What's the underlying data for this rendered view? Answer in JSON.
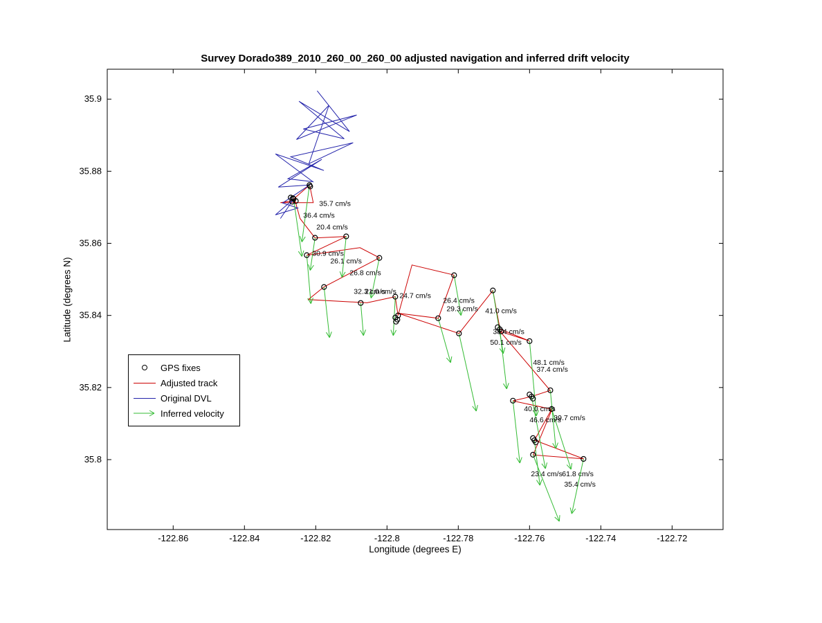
{
  "figure": {
    "title": "Survey Dorado389_2010_260_00_260_00 adjusted navigation and inferred drift velocity",
    "xlabel": "Longitude (degrees E)",
    "ylabel": "Latitude (degrees N)"
  },
  "legend": {
    "items": [
      {
        "label": "GPS fixes",
        "marker": "circle",
        "color": "#000000"
      },
      {
        "label": "Adjusted track",
        "marker": "line",
        "color": "#cc0000"
      },
      {
        "label": "Original DVL",
        "marker": "line",
        "color": "#2222aa"
      },
      {
        "label": "Inferred velocity",
        "marker": "arrow",
        "color": "#33bb33"
      }
    ]
  },
  "chart_data": {
    "type": "line",
    "title": "Survey Dorado389_2010_260_00_260_00 adjusted navigation and inferred drift velocity",
    "xlabel": "Longitude (degrees E)",
    "ylabel": "Latitude (degrees N)",
    "xlim": [
      -122.8785,
      -122.7057
    ],
    "ylim": [
      35.7806,
      35.9083
    ],
    "grid": false,
    "legend_position": "left-center-box",
    "x_ticks": {
      "values": [
        -122.86,
        -122.84,
        -122.82,
        -122.8,
        -122.78,
        -122.76,
        -122.74,
        -122.72
      ],
      "labels": [
        "-122.86",
        "-122.84",
        "-122.82",
        "-122.8",
        "-122.78",
        "-122.76",
        "-122.74",
        "-122.72"
      ]
    },
    "y_ticks": {
      "values": [
        35.8,
        35.82,
        35.84,
        35.86,
        35.88,
        35.9
      ],
      "labels": [
        "35.8",
        "35.82",
        "35.84",
        "35.86",
        "35.88",
        "35.9"
      ]
    },
    "series": [
      {
        "name": "Original DVL",
        "color": "#2222aa",
        "points": [
          [
            -122.8196,
            35.9023
          ],
          [
            -122.8105,
            35.891
          ],
          [
            -122.8247,
            35.8994
          ],
          [
            -122.812,
            35.889
          ],
          [
            -122.8235,
            35.8917
          ],
          [
            -122.8085,
            35.8956
          ],
          [
            -122.8254,
            35.8888
          ],
          [
            -122.8163,
            35.8983
          ],
          [
            -122.8219,
            35.8821
          ],
          [
            -122.8095,
            35.8879
          ],
          [
            -122.827,
            35.884
          ],
          [
            -122.8177,
            35.8802
          ],
          [
            -122.8313,
            35.8848
          ],
          [
            -122.8208,
            35.8771
          ],
          [
            -122.8278,
            35.8779
          ],
          [
            -122.8183,
            35.8833
          ],
          [
            -122.8305,
            35.8756
          ],
          [
            -122.8217,
            35.8762
          ],
          [
            -122.8293,
            35.8712
          ],
          [
            -122.825,
            35.8698
          ],
          [
            -122.8313,
            35.8679
          ],
          [
            -122.8262,
            35.8723
          ],
          [
            -122.8299,
            35.8669
          ]
        ]
      },
      {
        "name": "Adjusted track",
        "color": "#cc0000",
        "points": [
          [
            -122.8262,
            35.8723
          ],
          [
            -122.8217,
            35.8762
          ],
          [
            -122.8207,
            35.8713
          ],
          [
            -122.8299,
            35.8713
          ],
          [
            -122.8258,
            35.8719
          ],
          [
            -122.8244,
            35.8669
          ],
          [
            -122.8202,
            35.8615
          ],
          [
            -122.8114,
            35.8619
          ],
          [
            -122.8225,
            35.8567
          ],
          [
            -122.8076,
            35.8588
          ],
          [
            -122.8021,
            35.856
          ],
          [
            -122.8177,
            35.8479
          ],
          [
            -122.8221,
            35.8444
          ],
          [
            -122.8056,
            35.8435
          ],
          [
            -122.7977,
            35.8452
          ],
          [
            -122.7969,
            35.84
          ],
          [
            -122.793,
            35.854
          ],
          [
            -122.7812,
            35.8512
          ],
          [
            -122.7856,
            35.8392
          ],
          [
            -122.7969,
            35.8406
          ],
          [
            -122.7798,
            35.835
          ],
          [
            -122.7703,
            35.8469
          ],
          [
            -122.7683,
            35.8362
          ],
          [
            -122.76,
            35.8329
          ],
          [
            -122.7683,
            35.8356
          ],
          [
            -122.7542,
            35.8192
          ],
          [
            -122.7594,
            35.8175
          ],
          [
            -122.7647,
            35.8163
          ],
          [
            -122.7538,
            35.814
          ],
          [
            -122.7586,
            35.8054
          ],
          [
            -122.7448,
            35.8002
          ],
          [
            -122.759,
            35.8013
          ],
          [
            -122.7538,
            35.8137
          ]
        ]
      }
    ],
    "gps_fixes": {
      "name": "GPS fixes",
      "color": "#000000",
      "points": [
        [
          -122.82175,
          35.87615
        ],
        [
          -122.82155,
          35.87577
        ],
        [
          -122.82621,
          35.87231
        ],
        [
          -122.827,
          35.87269
        ],
        [
          -122.8256,
          35.87173
        ],
        [
          -122.8266,
          35.87154
        ],
        [
          -122.8264,
          35.8725
        ],
        [
          -122.82019,
          35.86154
        ],
        [
          -122.81146,
          35.86192
        ],
        [
          -122.82252,
          35.85673
        ],
        [
          -122.80214,
          35.85596
        ],
        [
          -122.81767,
          35.84788
        ],
        [
          -122.80738,
          35.84346
        ],
        [
          -122.79767,
          35.84519
        ],
        [
          -122.7969,
          35.84
        ],
        [
          -122.79767,
          35.83942
        ],
        [
          -122.79709,
          35.83885
        ],
        [
          -122.79748,
          35.83827
        ],
        [
          -122.78563,
          35.83923
        ],
        [
          -122.78117,
          35.85115
        ],
        [
          -122.77029,
          35.84692
        ],
        [
          -122.77981,
          35.835
        ],
        [
          -122.76835,
          35.83615
        ],
        [
          -122.76893,
          35.83673
        ],
        [
          -122.76796,
          35.83558
        ],
        [
          -122.76,
          35.83288
        ],
        [
          -122.75417,
          35.81923
        ],
        [
          -122.75942,
          35.8175
        ],
        [
          -122.76,
          35.81808
        ],
        [
          -122.75903,
          35.81692
        ],
        [
          -122.76466,
          35.81635
        ],
        [
          -122.75379,
          35.81404
        ],
        [
          -122.75864,
          35.80538
        ],
        [
          -122.75903,
          35.80596
        ],
        [
          -122.75825,
          35.80481
        ],
        [
          -122.75903,
          35.80135
        ],
        [
          -122.74486,
          35.80019
        ]
      ]
    },
    "velocity_vectors": {
      "name": "Inferred velocity",
      "color": "#33bb33",
      "unit": "cm/s",
      "vectors": [
        {
          "speed": 35.7,
          "label": "35.7 cm/s",
          "start": [
            -122.82175,
            35.87615
          ],
          "end": [
            -122.82388,
            35.86038
          ],
          "label_pos": [
            -122.81903,
            35.87038
          ]
        },
        {
          "speed": 36.4,
          "label": "36.4 cm/s",
          "start": [
            -122.82621,
            35.87231
          ],
          "end": [
            -122.82388,
            35.85635
          ],
          "label_pos": [
            -122.8235,
            35.86712
          ]
        },
        {
          "speed": 20.4,
          "label": "20.4 cm/s",
          "start": [
            -122.82019,
            35.86154
          ],
          "end": [
            -122.82155,
            35.8525
          ],
          "label_pos": [
            -122.81981,
            35.86385
          ]
        },
        {
          "speed": 30.9,
          "label": "30.9 cm/s",
          "start": [
            -122.82252,
            35.85673
          ],
          "end": [
            -122.82136,
            35.84327
          ],
          "label_pos": [
            -122.82097,
            35.85654
          ]
        },
        {
          "speed": 26.1,
          "label": "26.1 cm/s",
          "start": [
            -122.81146,
            35.86192
          ],
          "end": [
            -122.81262,
            35.85058
          ],
          "label_pos": [
            -122.81592,
            35.85442
          ]
        },
        {
          "speed": 26.8,
          "label": "26.8 cm/s",
          "start": [
            -122.80214,
            35.85596
          ],
          "end": [
            -122.80447,
            35.84481
          ],
          "label_pos": [
            -122.81049,
            35.85115
          ]
        },
        {
          "speed": 32.3,
          "label": "32.3 cm/s",
          "start": [
            -122.81767,
            35.84788
          ],
          "end": [
            -122.81612,
            35.83385
          ],
          "label_pos": [
            -122.80932,
            35.84596
          ]
        },
        {
          "speed": 21.0,
          "label": "21.0 cm/s",
          "start": [
            -122.80738,
            35.84346
          ],
          "end": [
            -122.8066,
            35.83442
          ],
          "label_pos": [
            -122.80621,
            35.84596
          ]
        },
        {
          "speed": 24.7,
          "label": "24.7 cm/s",
          "start": [
            -122.79767,
            35.84519
          ],
          "end": [
            -122.79825,
            35.83442
          ],
          "label_pos": [
            -122.7965,
            35.84481
          ]
        },
        {
          "speed": 26.4,
          "label": "26.4 cm/s",
          "start": [
            -122.78117,
            35.85115
          ],
          "end": [
            -122.77922,
            35.84
          ],
          "label_pos": [
            -122.78427,
            35.84346
          ]
        },
        {
          "speed": 29.3,
          "label": "29.3 cm/s",
          "start": [
            -122.78563,
            35.83923
          ],
          "end": [
            -122.78214,
            35.82692
          ],
          "label_pos": [
            -122.7833,
            35.84115
          ]
        },
        {
          "speed": 41.0,
          "label": "41.0 cm/s",
          "start": [
            -122.77029,
            35.84692
          ],
          "end": [
            -122.76738,
            35.82942
          ],
          "label_pos": [
            -122.77243,
            35.84058
          ]
        },
        {
          "speed": 38.4,
          "label": "38.4 cm/s",
          "start": [
            -122.76835,
            35.83615
          ],
          "end": [
            -122.76641,
            35.81962
          ],
          "label_pos": [
            -122.77029,
            35.83481
          ]
        },
        {
          "speed": 50.1,
          "label": "50.1 cm/s",
          "start": [
            -122.77981,
            35.835
          ],
          "end": [
            -122.77495,
            35.81346
          ],
          "label_pos": [
            -122.77107,
            35.83192
          ]
        },
        {
          "speed": 48.1,
          "label": "48.1 cm/s",
          "start": [
            -122.76,
            35.83288
          ],
          "end": [
            -122.75806,
            35.81212
          ],
          "label_pos": [
            -122.75903,
            35.82635
          ]
        },
        {
          "speed": 37.4,
          "label": "37.4 cm/s",
          "start": [
            -122.75417,
            35.81923
          ],
          "end": [
            -122.75262,
            35.80308
          ],
          "label_pos": [
            -122.75806,
            35.82442
          ]
        },
        {
          "speed": 40.0,
          "label": "40.0 cm/s",
          "start": [
            -122.76466,
            35.81635
          ],
          "end": [
            -122.76272,
            35.79904
          ],
          "label_pos": [
            -122.76156,
            35.81346
          ]
        },
        {
          "speed": 46.6,
          "label": "46.6 cm/s",
          "start": [
            -122.75942,
            35.8175
          ],
          "end": [
            -122.75554,
            35.7975
          ],
          "label_pos": [
            -122.76,
            35.81038
          ]
        },
        {
          "speed": 39.7,
          "label": "39.7 cm/s",
          "start": [
            -122.75379,
            35.81404
          ],
          "end": [
            -122.74835,
            35.79731
          ],
          "label_pos": [
            -122.75321,
            35.81096
          ]
        },
        {
          "speed": 23.4,
          "label": "23.4 cm/s",
          "start": [
            -122.75864,
            35.80538
          ],
          "end": [
            -122.75709,
            35.79288
          ],
          "label_pos": [
            -122.75961,
            35.79538
          ]
        },
        {
          "speed": 61.8,
          "label": "61.8 cm/s",
          "start": [
            -122.75903,
            35.80135
          ],
          "end": [
            -122.75165,
            35.78288
          ],
          "label_pos": [
            -122.75088,
            35.79538
          ]
        },
        {
          "speed": 35.4,
          "label": "35.4 cm/s",
          "start": [
            -122.74486,
            35.80019
          ],
          "end": [
            -122.74816,
            35.785
          ],
          "label_pos": [
            -122.75029,
            35.7925
          ]
        }
      ]
    }
  }
}
